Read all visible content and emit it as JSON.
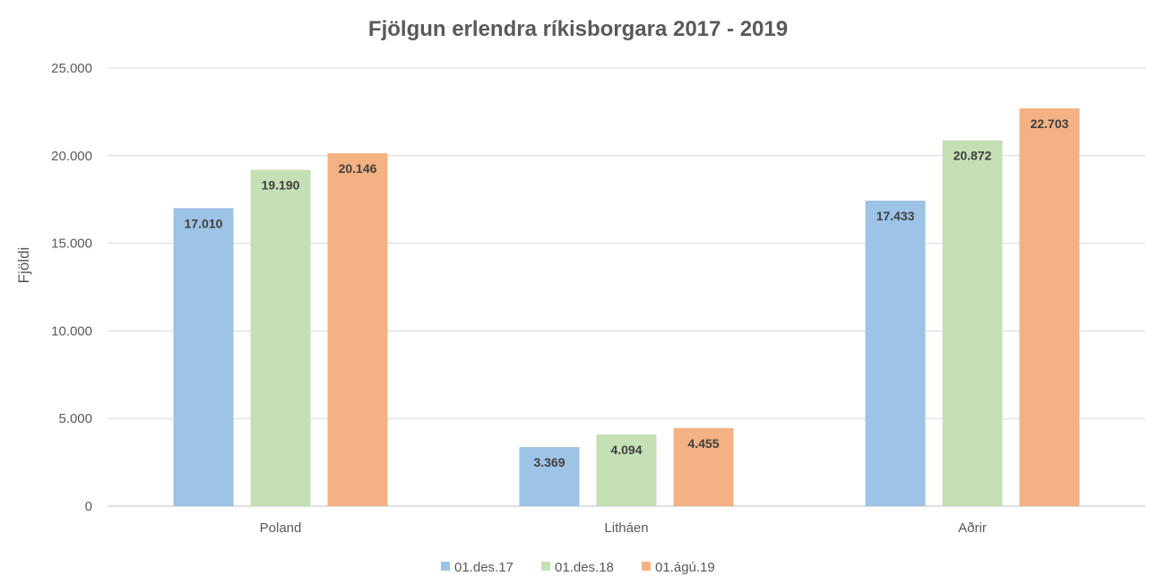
{
  "chart_data": {
    "type": "bar",
    "title": "Fjölgun erlendra ríkisborgara 2017 - 2019",
    "xlabel": "",
    "ylabel": "Fjöldi",
    "categories": [
      "Poland",
      "Litháen",
      "Aðrir"
    ],
    "series": [
      {
        "name": "01.des.17",
        "color": "#9dc3e6",
        "values": [
          17010,
          3369,
          17433
        ],
        "labels": [
          "17.010",
          "3.369",
          "17.433"
        ]
      },
      {
        "name": "01.des.18",
        "color": "#c5e0b4",
        "values": [
          19190,
          4094,
          20872
        ],
        "labels": [
          "19.190",
          "4.094",
          "20.872"
        ]
      },
      {
        "name": "01.ágú.19",
        "color": "#f4b183",
        "values": [
          20146,
          4455,
          22703
        ],
        "labels": [
          "20.146",
          "4.455",
          "22.703"
        ]
      }
    ],
    "ylim": [
      0,
      25000
    ],
    "yticks": [
      0,
      5000,
      10000,
      15000,
      20000,
      25000
    ],
    "ytick_labels": [
      "0",
      "5.000",
      "10.000",
      "15.000",
      "20.000",
      "25.000"
    ],
    "grid": true,
    "legend_position": "bottom"
  }
}
